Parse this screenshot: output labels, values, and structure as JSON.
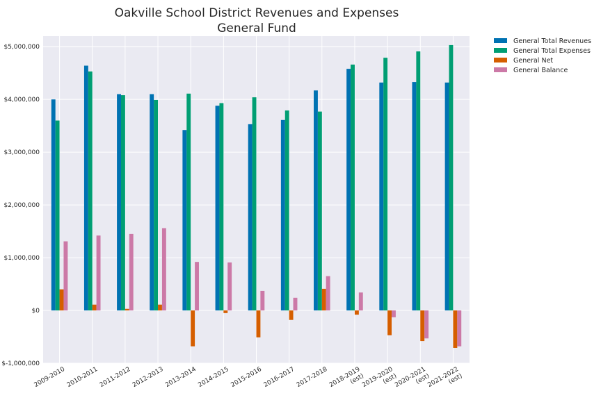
{
  "chart_data": {
    "type": "bar",
    "title": "Oakville School District Revenues and Expenses",
    "subtitle": "General Fund",
    "xlabel": "",
    "ylabel": "",
    "ylim": [
      -1000000,
      5200000
    ],
    "yticks": [
      -1000000,
      0,
      1000000,
      2000000,
      3000000,
      4000000,
      5000000
    ],
    "ytick_labels": [
      "$-1,000,000",
      "$0",
      "$1,000,000",
      "$2,000,000",
      "$3,000,000",
      "$4,000,000",
      "$5,000,000"
    ],
    "grid": true,
    "legend_position": "outside-top-right",
    "categories": [
      "2009-2010",
      "2010-2011",
      "2011-2012",
      "2012-2013",
      "2013-2014",
      "2014-2015",
      "2015-2016",
      "2016-2017",
      "2017-2018",
      "2018-2019\n(est)",
      "2019-2020\n(est)",
      "2020-2021\n(est)",
      "2021-2022\n(est)"
    ],
    "series": [
      {
        "name": "General Total Revenues",
        "color": "#0072b2",
        "values": [
          4000000,
          4640000,
          4100000,
          4100000,
          3420000,
          3880000,
          3530000,
          3610000,
          4170000,
          4580000,
          4320000,
          4330000,
          4320000
        ]
      },
      {
        "name": "General Total Expenses",
        "color": "#009e73",
        "values": [
          3600000,
          4530000,
          4080000,
          3990000,
          4110000,
          3930000,
          4040000,
          3790000,
          3770000,
          4660000,
          4790000,
          4910000,
          5030000
        ]
      },
      {
        "name": "General Net",
        "color": "#d55e00",
        "values": [
          400000,
          110000,
          30000,
          110000,
          -680000,
          -50000,
          -510000,
          -180000,
          410000,
          -80000,
          -470000,
          -580000,
          -710000
        ]
      },
      {
        "name": "General Balance",
        "color": "#cc79a7",
        "values": [
          1310000,
          1420000,
          1450000,
          1560000,
          920000,
          910000,
          370000,
          240000,
          650000,
          340000,
          -130000,
          -530000,
          -680000
        ]
      }
    ]
  },
  "colors": {
    "plot_background": "#eaeaf2",
    "grid": "#ffffff",
    "text": "#262626"
  }
}
